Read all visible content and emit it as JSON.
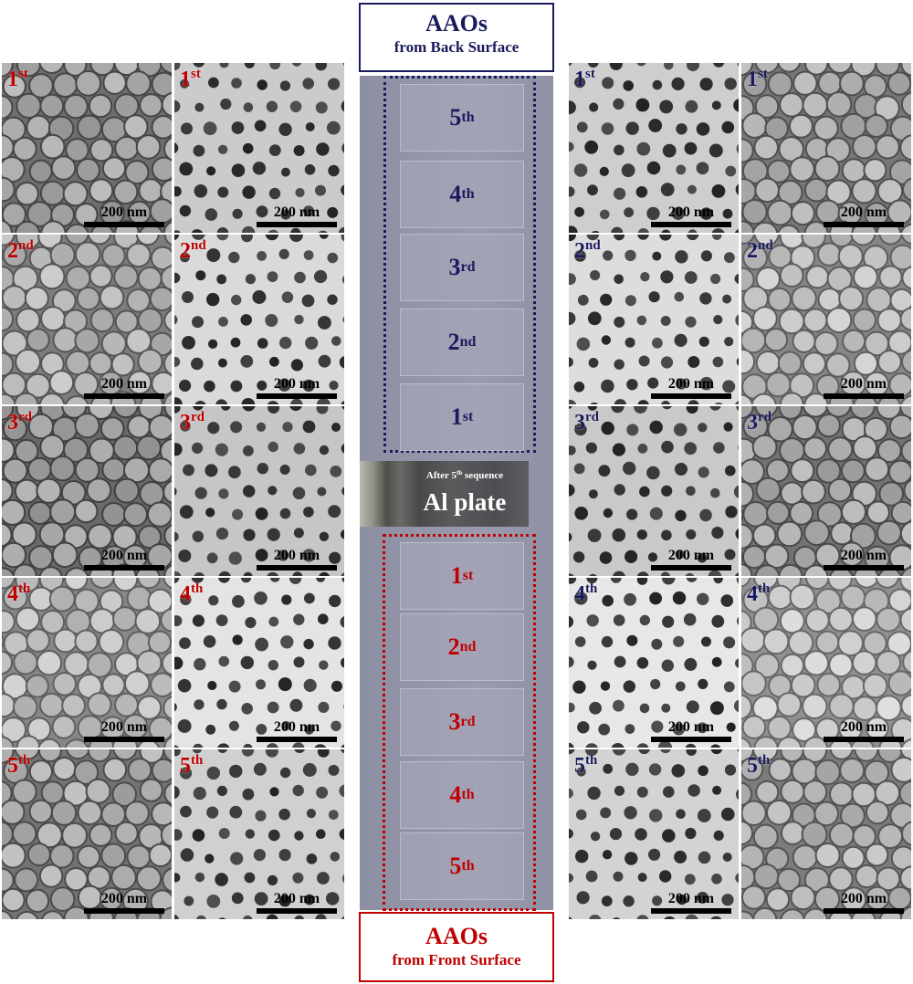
{
  "colors": {
    "front_red": "#c00000",
    "back_navy": "#1a1a5e"
  },
  "scale_bar_label": "200 nm",
  "order_labels": [
    {
      "base": "1",
      "suffix": "st"
    },
    {
      "base": "2",
      "suffix": "nd"
    },
    {
      "base": "3",
      "suffix": "rd"
    },
    {
      "base": "4",
      "suffix": "th"
    },
    {
      "base": "5",
      "suffix": "th"
    }
  ],
  "titles": {
    "back": {
      "main": "AAOs",
      "sub": "from Back Surface"
    },
    "front": {
      "main": "AAOs",
      "sub": "from Front Surface"
    }
  },
  "al_plate": {
    "caption_pre": "After 5",
    "caption_sup": "th",
    "caption_post": " sequence",
    "label": "Al plate"
  },
  "panels": {
    "left_outer": "front surface, nodule pattern (red labels)",
    "left_inner": "front surface, pore pattern (red labels)",
    "right_inner": "back surface, pore pattern (navy labels)",
    "right_outer": "back surface, nodule pattern (navy labels)"
  }
}
